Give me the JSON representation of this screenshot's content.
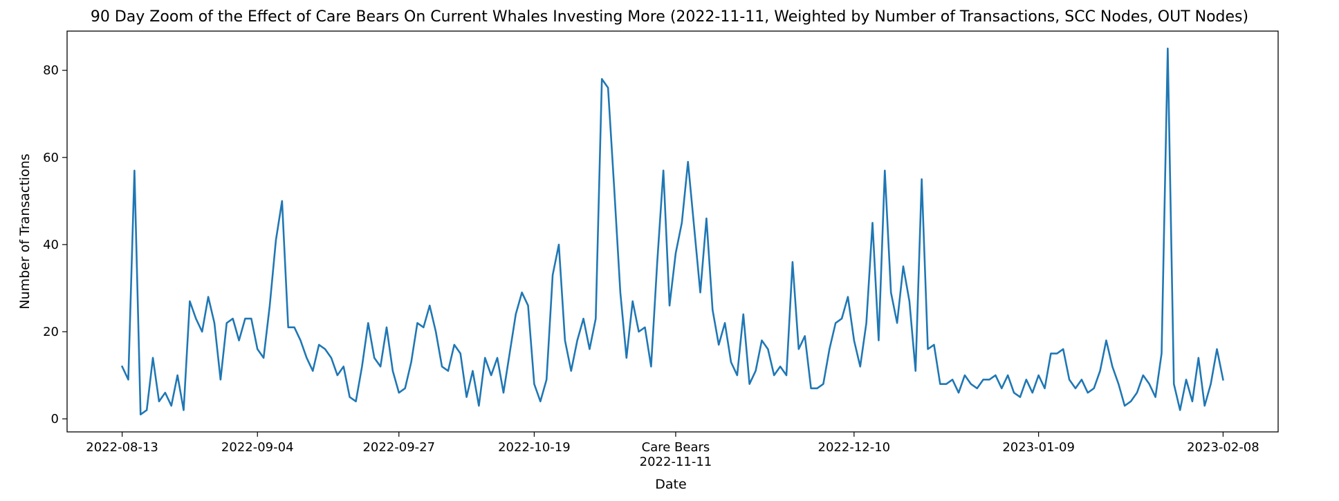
{
  "chart_data": {
    "type": "line",
    "title": "90 Day Zoom of the Effect of Care Bears On Current Whales Investing More (2022-11-11, Weighted by Number of Transactions, SCC Nodes, OUT Nodes)",
    "xlabel": "Date",
    "ylabel": "Number of Transactions",
    "x_start": "2022-08-13",
    "x_end": "2023-02-08",
    "ylim": [
      -3,
      89
    ],
    "grid": false,
    "legend": "none",
    "line_color": "#1f77b4",
    "x_ticks": [
      {
        "date": "2022-08-13",
        "label": "2022-08-13"
      },
      {
        "date": "2022-09-04",
        "label": "2022-09-04"
      },
      {
        "date": "2022-09-27",
        "label": "2022-09-27"
      },
      {
        "date": "2022-10-19",
        "label": "2022-10-19"
      },
      {
        "date": "2022-11-11",
        "label": "Care Bears",
        "label2": "2022-11-11"
      },
      {
        "date": "2022-12-10",
        "label": "2022-12-10"
      },
      {
        "date": "2023-01-09",
        "label": "2023-01-09"
      },
      {
        "date": "2023-02-08",
        "label": "2023-02-08"
      }
    ],
    "y_ticks": [
      0,
      20,
      40,
      60,
      80
    ],
    "series": [
      {
        "x": [
          "2022-08-13",
          "2022-08-14",
          "2022-08-15",
          "2022-08-16",
          "2022-08-17",
          "2022-08-18",
          "2022-08-19",
          "2022-08-20",
          "2022-08-21",
          "2022-08-22",
          "2022-08-23",
          "2022-08-24",
          "2022-08-25",
          "2022-08-26",
          "2022-08-27",
          "2022-08-28",
          "2022-08-29",
          "2022-08-30",
          "2022-08-31",
          "2022-09-01",
          "2022-09-02",
          "2022-09-03",
          "2022-09-04",
          "2022-09-05",
          "2022-09-06",
          "2022-09-07",
          "2022-09-08",
          "2022-09-09",
          "2022-09-10",
          "2022-09-11",
          "2022-09-12",
          "2022-09-13",
          "2022-09-14",
          "2022-09-15",
          "2022-09-16",
          "2022-09-17",
          "2022-09-18",
          "2022-09-19",
          "2022-09-20",
          "2022-09-21",
          "2022-09-22",
          "2022-09-23",
          "2022-09-24",
          "2022-09-25",
          "2022-09-26",
          "2022-09-27",
          "2022-09-28",
          "2022-09-29",
          "2022-09-30",
          "2022-10-01",
          "2022-10-02",
          "2022-10-03",
          "2022-10-04",
          "2022-10-05",
          "2022-10-06",
          "2022-10-07",
          "2022-10-08",
          "2022-10-09",
          "2022-10-10",
          "2022-10-11",
          "2022-10-12",
          "2022-10-13",
          "2022-10-14",
          "2022-10-15",
          "2022-10-16",
          "2022-10-17",
          "2022-10-18",
          "2022-10-19",
          "2022-10-20",
          "2022-10-21",
          "2022-10-22",
          "2022-10-23",
          "2022-10-24",
          "2022-10-25",
          "2022-10-26",
          "2022-10-27",
          "2022-10-28",
          "2022-10-29",
          "2022-10-30",
          "2022-10-31",
          "2022-11-01",
          "2022-11-02",
          "2022-11-03",
          "2022-11-04",
          "2022-11-05",
          "2022-11-06",
          "2022-11-07",
          "2022-11-08",
          "2022-11-09",
          "2022-11-10",
          "2022-11-11",
          "2022-11-12",
          "2022-11-13",
          "2022-11-14",
          "2022-11-15",
          "2022-11-16",
          "2022-11-17",
          "2022-11-18",
          "2022-11-19",
          "2022-11-20",
          "2022-11-21",
          "2022-11-22",
          "2022-11-23",
          "2022-11-24",
          "2022-11-25",
          "2022-11-26",
          "2022-11-27",
          "2022-11-28",
          "2022-11-29",
          "2022-11-30",
          "2022-12-01",
          "2022-12-02",
          "2022-12-03",
          "2022-12-04",
          "2022-12-05",
          "2022-12-06",
          "2022-12-07",
          "2022-12-08",
          "2022-12-09",
          "2022-12-10",
          "2022-12-11",
          "2022-12-12",
          "2022-12-13",
          "2022-12-14",
          "2022-12-15",
          "2022-12-16",
          "2022-12-17",
          "2022-12-18",
          "2022-12-19",
          "2022-12-20",
          "2022-12-21",
          "2022-12-22",
          "2022-12-23",
          "2022-12-24",
          "2022-12-25",
          "2022-12-26",
          "2022-12-27",
          "2022-12-28",
          "2022-12-29",
          "2022-12-30",
          "2022-12-31",
          "2023-01-01",
          "2023-01-02",
          "2023-01-03",
          "2023-01-04",
          "2023-01-05",
          "2023-01-06",
          "2023-01-07",
          "2023-01-08",
          "2023-01-09",
          "2023-01-10",
          "2023-01-11",
          "2023-01-12",
          "2023-01-13",
          "2023-01-14",
          "2023-01-15",
          "2023-01-16",
          "2023-01-17",
          "2023-01-18",
          "2023-01-19",
          "2023-01-20",
          "2023-01-21",
          "2023-01-22",
          "2023-01-23",
          "2023-01-24",
          "2023-01-25",
          "2023-01-26",
          "2023-01-27",
          "2023-01-28",
          "2023-01-29",
          "2023-01-30",
          "2023-01-31",
          "2023-02-01",
          "2023-02-02",
          "2023-02-03",
          "2023-02-04",
          "2023-02-05",
          "2023-02-06",
          "2023-02-07",
          "2023-02-08"
        ],
        "y": [
          12,
          9,
          57,
          1,
          2,
          14,
          4,
          6,
          3,
          10,
          2,
          27,
          23,
          20,
          28,
          22,
          9,
          22,
          23,
          18,
          23,
          23,
          16,
          14,
          26,
          41,
          50,
          21,
          21,
          18,
          14,
          11,
          17,
          16,
          14,
          10,
          12,
          5,
          4,
          12,
          22,
          14,
          12,
          21,
          11,
          6,
          7,
          13,
          22,
          21,
          26,
          20,
          12,
          11,
          17,
          15,
          5,
          11,
          3,
          14,
          10,
          14,
          6,
          15,
          24,
          29,
          26,
          8,
          4,
          9,
          33,
          40,
          18,
          11,
          18,
          23,
          16,
          23,
          78,
          76,
          53,
          29,
          14,
          27,
          20,
          21,
          12,
          36,
          57,
          26,
          38,
          45,
          59,
          44,
          29,
          46,
          25,
          17,
          22,
          13,
          10,
          24,
          8,
          11,
          18,
          16,
          10,
          12,
          10,
          36,
          16,
          19,
          7,
          7,
          8,
          16,
          22,
          23,
          28,
          18,
          12,
          22,
          45,
          18,
          57,
          29,
          22,
          35,
          27,
          11,
          55,
          16,
          17,
          8,
          8,
          9,
          6,
          10,
          8,
          7,
          9,
          9,
          10,
          7,
          10,
          6,
          5,
          9,
          6,
          10,
          7,
          15,
          15,
          16,
          9,
          7,
          9,
          6,
          7,
          11,
          18,
          12,
          8,
          3,
          4,
          6,
          10,
          8,
          5,
          15,
          85,
          8,
          2,
          9,
          4,
          14,
          3,
          8,
          16,
          9
        ]
      }
    ]
  }
}
